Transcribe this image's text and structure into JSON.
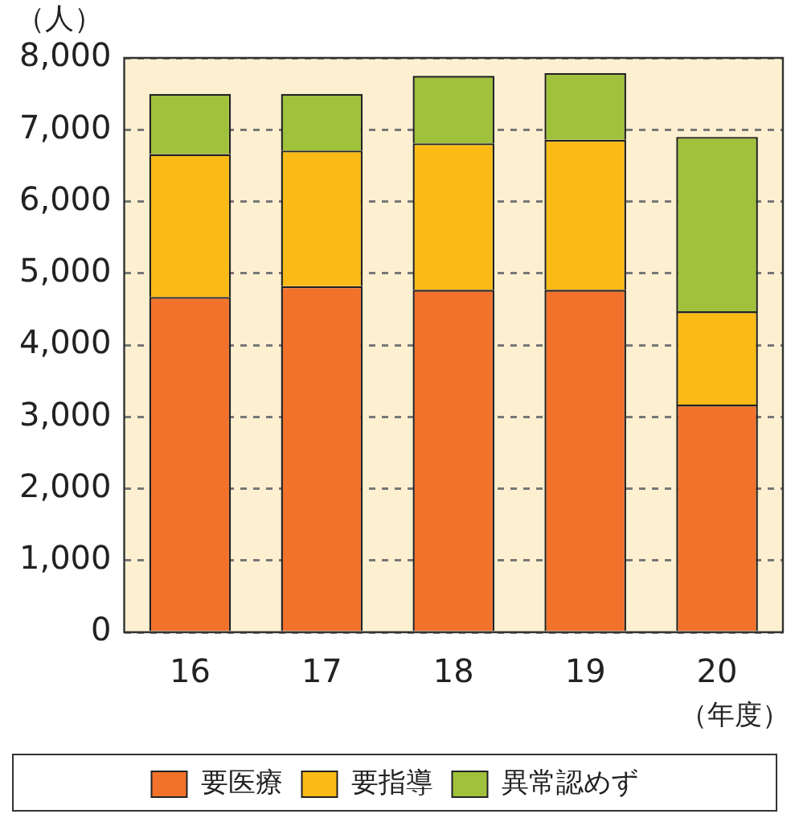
{
  "chart_data": {
    "type": "bar",
    "ylabel": "（人）",
    "categories": [
      "16",
      "17",
      "18",
      "19",
      "20"
    ],
    "stacked": true,
    "ylim": [
      0,
      8000
    ],
    "yticks": [
      {
        "value": 0,
        "label": "0"
      },
      {
        "value": 1000,
        "label": "1,000"
      },
      {
        "value": 2000,
        "label": "2,000"
      },
      {
        "value": 3000,
        "label": "3,000"
      },
      {
        "value": 4000,
        "label": "4,000"
      },
      {
        "value": 5000,
        "label": "5,000"
      },
      {
        "value": 6000,
        "label": "6,000"
      },
      {
        "value": 7000,
        "label": "7,000"
      },
      {
        "value": 8000,
        "label": "8,000"
      }
    ],
    "grid": "y",
    "legend": "bottom",
    "annotations": [
      "（年度）"
    ],
    "series": [
      {
        "name": "要医療",
        "color": "#f2722c",
        "values": [
          4670,
          4820,
          4770,
          4770,
          3170
        ]
      },
      {
        "name": "要指導",
        "color": "#fbbb16",
        "values": [
          1990,
          1890,
          2040,
          2090,
          1300
        ]
      },
      {
        "name": "異常認めず",
        "color": "#a0c13b",
        "values": [
          840,
          790,
          940,
          930,
          2430
        ]
      }
    ]
  }
}
